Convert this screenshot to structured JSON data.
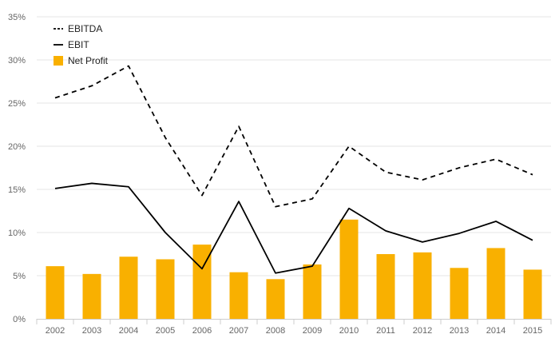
{
  "chart_data": {
    "type": "bar",
    "categories": [
      "2002",
      "2003",
      "2004",
      "2005",
      "2006",
      "2007",
      "2008",
      "2009",
      "2010",
      "2011",
      "2012",
      "2013",
      "2014",
      "2015"
    ],
    "series": [
      {
        "name": "EBITDA",
        "type": "line",
        "style": "dashed",
        "color": "#000000",
        "values": [
          25.6,
          27.0,
          29.3,
          21.0,
          14.3,
          22.3,
          13.0,
          13.9,
          20.0,
          17.0,
          16.1,
          17.5,
          18.5,
          16.7
        ]
      },
      {
        "name": "EBIT",
        "type": "line",
        "style": "solid",
        "color": "#000000",
        "values": [
          15.1,
          15.7,
          15.3,
          10.0,
          5.8,
          13.6,
          5.3,
          6.1,
          12.8,
          10.2,
          8.9,
          9.9,
          11.3,
          9.1
        ]
      },
      {
        "name": "Net Profit",
        "type": "bar",
        "color": "#f9b000",
        "values": [
          6.1,
          5.2,
          7.2,
          6.9,
          8.6,
          5.4,
          4.6,
          6.3,
          11.5,
          7.5,
          7.7,
          5.9,
          8.2,
          5.7
        ]
      }
    ],
    "ylim": [
      0,
      35
    ],
    "y_ticks": [
      "0%",
      "5%",
      "10%",
      "15%",
      "20%",
      "25%",
      "30%",
      "35%"
    ],
    "grid": true,
    "legend_position": "top-left",
    "title": "",
    "xlabel": "",
    "ylabel": ""
  }
}
